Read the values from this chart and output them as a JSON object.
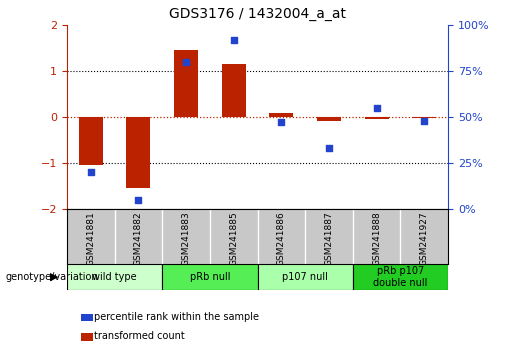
{
  "title": "GDS3176 / 1432004_a_at",
  "samples": [
    "GSM241881",
    "GSM241882",
    "GSM241883",
    "GSM241885",
    "GSM241886",
    "GSM241887",
    "GSM241888",
    "GSM241927"
  ],
  "bar_values": [
    -1.05,
    -1.55,
    1.45,
    1.15,
    0.08,
    -0.1,
    -0.05,
    -0.03
  ],
  "blue_dot_pct": [
    20,
    5,
    80,
    92,
    47,
    33,
    55,
    48
  ],
  "bar_color": "#bb2200",
  "dot_color": "#2244cc",
  "ylim": [
    -2,
    2
  ],
  "yticks_left": [
    -2,
    -1,
    0,
    1,
    2
  ],
  "yticks_right": [
    0,
    25,
    50,
    75,
    100
  ],
  "groups": [
    {
      "label": "wild type",
      "samples": [
        0,
        1
      ],
      "color": "#ccffcc"
    },
    {
      "label": "pRb null",
      "samples": [
        2,
        3
      ],
      "color": "#55ee55"
    },
    {
      "label": "p107 null",
      "samples": [
        4,
        5
      ],
      "color": "#aaffaa"
    },
    {
      "label": "pRb p107\ndouble null",
      "samples": [
        6,
        7
      ],
      "color": "#22cc22"
    }
  ],
  "legend_items": [
    {
      "label": "transformed count",
      "color": "#bb2200"
    },
    {
      "label": "percentile rank within the sample",
      "color": "#2244cc"
    }
  ],
  "bar_width": 0.5,
  "group_label": "genotype/variation",
  "sample_box_color": "#c8c8c8",
  "sample_divider_color": "#ffffff"
}
